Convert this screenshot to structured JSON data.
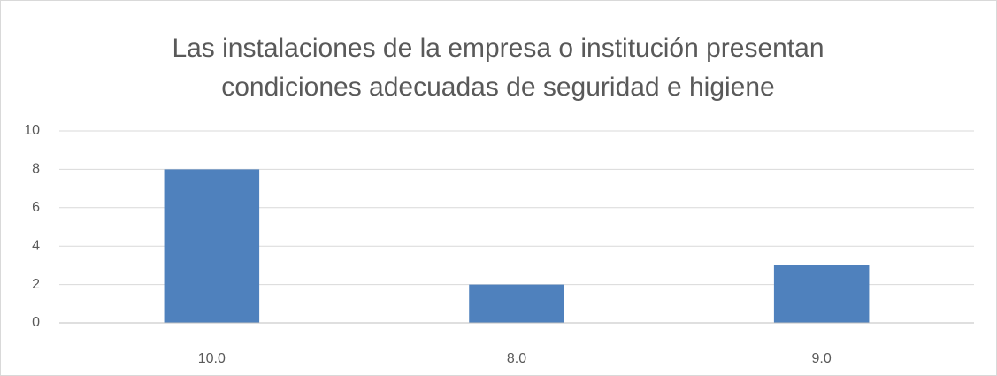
{
  "chart_data": {
    "type": "bar",
    "title": [
      "Las instalaciones de la empresa o institución presentan",
      "condiciones adecuadas de seguridad e higiene"
    ],
    "categories": [
      "10.0",
      "8.0",
      "9.0"
    ],
    "values": [
      8,
      2,
      3
    ],
    "color": "#4f81bd",
    "ylim": [
      0,
      10
    ],
    "yticks": [
      0,
      2,
      4,
      6,
      8,
      10
    ],
    "grid": true
  }
}
